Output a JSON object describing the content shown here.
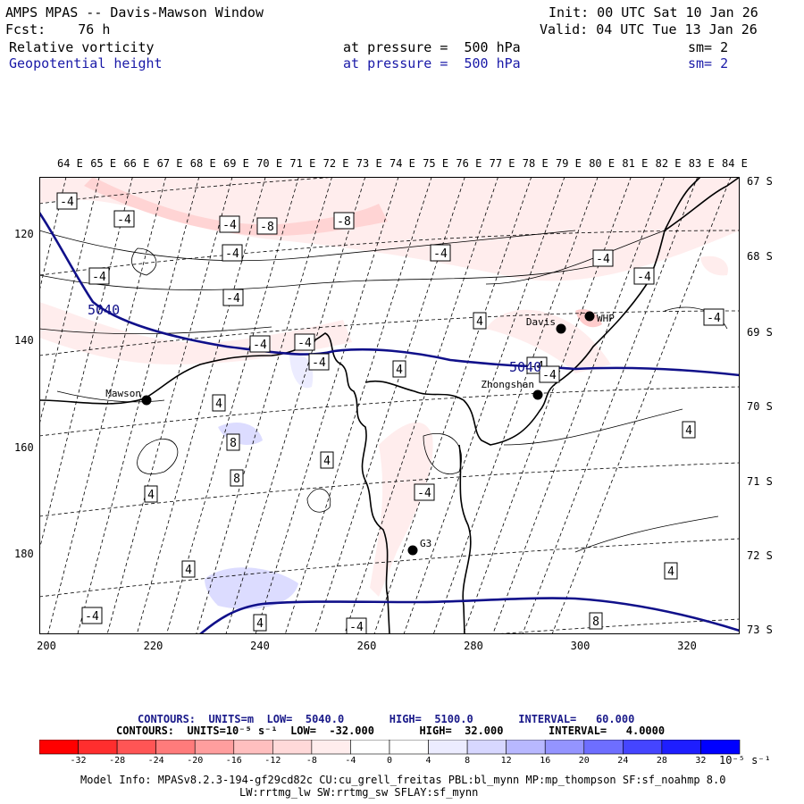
{
  "header": {
    "title": "AMPS MPAS -- Davis-Mawson Window",
    "init": "Init: 00 UTC Sat 10 Jan 26",
    "fcst": "Fcst:    76 h",
    "valid": "Valid: 04 UTC Tue 13 Jan 26",
    "field1_name": "Relative vorticity",
    "field1_level": "at pressure =  500 hPa",
    "field1_sm": "sm= 2",
    "field2_name": "Geopotential height",
    "field2_level": "at pressure =  500 hPa",
    "field2_sm": "sm= 2"
  },
  "map": {
    "lon_labels": [
      "64 E",
      "65 E",
      "66 E",
      "67 E",
      "68 E",
      "69 E",
      "70 E",
      "71 E",
      "72 E",
      "73 E",
      "74 E",
      "75 E",
      "76 E",
      "77 E",
      "78 E",
      "79 E",
      "80 E",
      "81 E",
      "82 E",
      "83 E",
      "84 E"
    ],
    "lat_labels": [
      "67 S",
      "68 S",
      "69 S",
      "70 S",
      "71 S",
      "72 S",
      "73 S"
    ],
    "y_ticks": [
      "120",
      "140",
      "160",
      "180"
    ],
    "x_ticks": [
      "200",
      "220",
      "240",
      "260",
      "280",
      "300",
      "320"
    ],
    "stations": [
      {
        "name": "Mawson"
      },
      {
        "name": "Davis"
      },
      {
        "name": "WHP"
      },
      {
        "name": "Zhongshan"
      },
      {
        "name": "G3"
      }
    ],
    "height_labels": [
      "5040",
      "5040"
    ],
    "vort_labels": [
      "-4",
      "-4",
      "-4",
      "-8",
      "-8",
      "-4",
      "-4",
      "-4",
      "-4",
      "-4",
      "-4",
      "-4",
      "-4",
      "4",
      "4",
      "-4",
      "-4",
      "4",
      "8",
      "8",
      "4",
      "4",
      "-4",
      "4",
      "4",
      "-4",
      "4",
      "8",
      "-4",
      "4",
      "-4",
      "-4"
    ],
    "colors": {
      "height_contour": "#10108a",
      "coast": "#000000",
      "grid": "#000000"
    }
  },
  "contour_info": {
    "line1": "CONTOURS:  UNITS=m  LOW=  5040.0       HIGH=  5100.0       INTERVAL=   60.000",
    "line2": "CONTOURS:  UNITS=10⁻⁵ s⁻¹  LOW=  -32.000       HIGH=  32.000       INTERVAL=   4.0000"
  },
  "colorbar": {
    "colors": [
      "#ff0000",
      "#ff2e2e",
      "#ff5555",
      "#ff7b7b",
      "#ff9e9e",
      "#ffbfbf",
      "#ffd9d9",
      "#ffeded",
      "#ffffff",
      "#ffffff",
      "#ececff",
      "#d7d7ff",
      "#b8b8ff",
      "#9494ff",
      "#6e6eff",
      "#4545ff",
      "#1e1eff",
      "#0000ff"
    ],
    "labels": [
      "-32",
      "-28",
      "-24",
      "-20",
      "-16",
      "-12",
      "-8",
      "-4",
      "0",
      "4",
      "8",
      "12",
      "16",
      "20",
      "24",
      "28",
      "32"
    ],
    "units": "10⁻⁵ s⁻¹"
  },
  "footer": {
    "line1": "Model Info: MPASv8.2.3-194-gf29cd82c CU:cu_grell_freitas PBL:bl_mynn MP:mp_thompson SF:sf_noahmp 8.0",
    "line2": "LW:rrtmg_lw SW:rrtmg_sw SFLAY:sf_mynn"
  }
}
